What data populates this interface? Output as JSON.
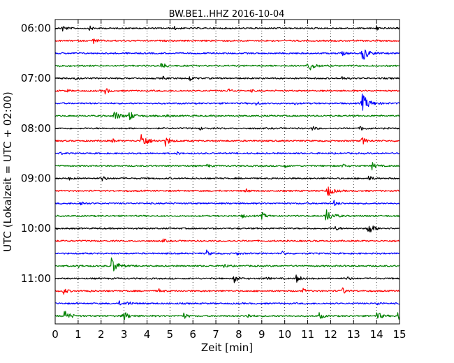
{
  "chart_data": {
    "type": "line",
    "title": "BW.BE1..HHZ 2016-10-04",
    "xlabel": "Zeit  [min]",
    "ylabel": "UTC (Lokalzeit = UTC + 02:00)",
    "xlim": [
      0,
      15
    ],
    "x_ticks": [
      "0",
      "1",
      "2",
      "3",
      "4",
      "5",
      "6",
      "7",
      "8",
      "9",
      "10",
      "11",
      "12",
      "13",
      "14",
      "15"
    ],
    "y_tick_labels": [
      "06:00",
      "07:00",
      "08:00",
      "09:00",
      "10:00",
      "11:00"
    ],
    "trace_start": "06:00",
    "trace_interval_min": 15,
    "grid": "vertical-dotted",
    "series_colors": [
      "#000000",
      "#ff0000",
      "#0000ff",
      "#008000"
    ],
    "traces": [
      {
        "start": "06:00",
        "events": [
          [
            0.3,
            5
          ],
          [
            1.5,
            3
          ],
          [
            5.2,
            2
          ],
          [
            14.0,
            3
          ]
        ]
      },
      {
        "start": "06:15",
        "events": [
          [
            1.65,
            4
          ]
        ]
      },
      {
        "start": "06:30",
        "events": [
          [
            13.35,
            12
          ],
          [
            12.5,
            3
          ]
        ]
      },
      {
        "start": "06:45",
        "events": [
          [
            4.6,
            6
          ],
          [
            11.0,
            10
          ],
          [
            0.2,
            2
          ]
        ]
      },
      {
        "start": "07:00",
        "events": [
          [
            5.85,
            4
          ],
          [
            0.9,
            2
          ],
          [
            4.7,
            2
          ],
          [
            12.5,
            3
          ]
        ]
      },
      {
        "start": "07:15",
        "events": [
          [
            2.15,
            5
          ],
          [
            7.55,
            3
          ],
          [
            8.5,
            2
          ],
          [
            0.5,
            2
          ]
        ]
      },
      {
        "start": "07:30",
        "events": [
          [
            13.35,
            14
          ],
          [
            8.75,
            3
          ],
          [
            10.4,
            2
          ]
        ]
      },
      {
        "start": "07:45",
        "events": [
          [
            2.55,
            9
          ],
          [
            3.2,
            8
          ],
          [
            4.8,
            2
          ]
        ]
      },
      {
        "start": "08:00",
        "events": [
          [
            13.3,
            4
          ],
          [
            11.2,
            3
          ],
          [
            6.3,
            2
          ]
        ]
      },
      {
        "start": "08:15",
        "events": [
          [
            3.75,
            12
          ],
          [
            4.8,
            7
          ],
          [
            2.5,
            3
          ],
          [
            13.35,
            6
          ]
        ]
      },
      {
        "start": "08:30",
        "events": [
          [
            0.2,
            2
          ],
          [
            5.3,
            2
          ]
        ]
      },
      {
        "start": "08:45",
        "events": [
          [
            13.8,
            5
          ],
          [
            12.5,
            3
          ],
          [
            6.6,
            3
          ],
          [
            10.0,
            2
          ]
        ]
      },
      {
        "start": "09:00",
        "events": [
          [
            2.05,
            4
          ],
          [
            13.65,
            4
          ],
          [
            0.6,
            2
          ]
        ]
      },
      {
        "start": "09:15",
        "events": [
          [
            11.85,
            9
          ],
          [
            8.3,
            3
          ]
        ]
      },
      {
        "start": "09:30",
        "events": [
          [
            1.1,
            4
          ],
          [
            12.15,
            4
          ]
        ]
      },
      {
        "start": "09:45",
        "events": [
          [
            11.75,
            12
          ],
          [
            9.0,
            5
          ],
          [
            8.15,
            3
          ]
        ]
      },
      {
        "start": "10:00",
        "events": [
          [
            13.6,
            10
          ],
          [
            12.2,
            3
          ]
        ]
      },
      {
        "start": "10:15",
        "events": [
          [
            4.7,
            3
          ]
        ]
      },
      {
        "start": "10:30",
        "events": [
          [
            6.6,
            4
          ],
          [
            9.9,
            3
          ],
          [
            7.9,
            2
          ]
        ]
      },
      {
        "start": "10:45",
        "events": [
          [
            2.45,
            12
          ],
          [
            7.3,
            4
          ],
          [
            1.0,
            2
          ]
        ]
      },
      {
        "start": "11:00",
        "events": [
          [
            7.8,
            6
          ],
          [
            10.5,
            6
          ],
          [
            12.7,
            3
          ],
          [
            9.2,
            2
          ]
        ]
      },
      {
        "start": "11:15",
        "events": [
          [
            0.35,
            5
          ],
          [
            12.5,
            5
          ],
          [
            4.5,
            3
          ],
          [
            10.8,
            3
          ],
          [
            1.4,
            2
          ]
        ]
      },
      {
        "start": "11:30",
        "events": [
          [
            3.15,
            4
          ],
          [
            2.8,
            3
          ],
          [
            14.0,
            3
          ]
        ]
      },
      {
        "start": "11:45",
        "events": [
          [
            0.4,
            9
          ],
          [
            2.95,
            8
          ],
          [
            14.9,
            8
          ],
          [
            14.0,
            7
          ],
          [
            5.6,
            4
          ],
          [
            8.3,
            5
          ],
          [
            11.5,
            5
          ]
        ]
      }
    ]
  }
}
